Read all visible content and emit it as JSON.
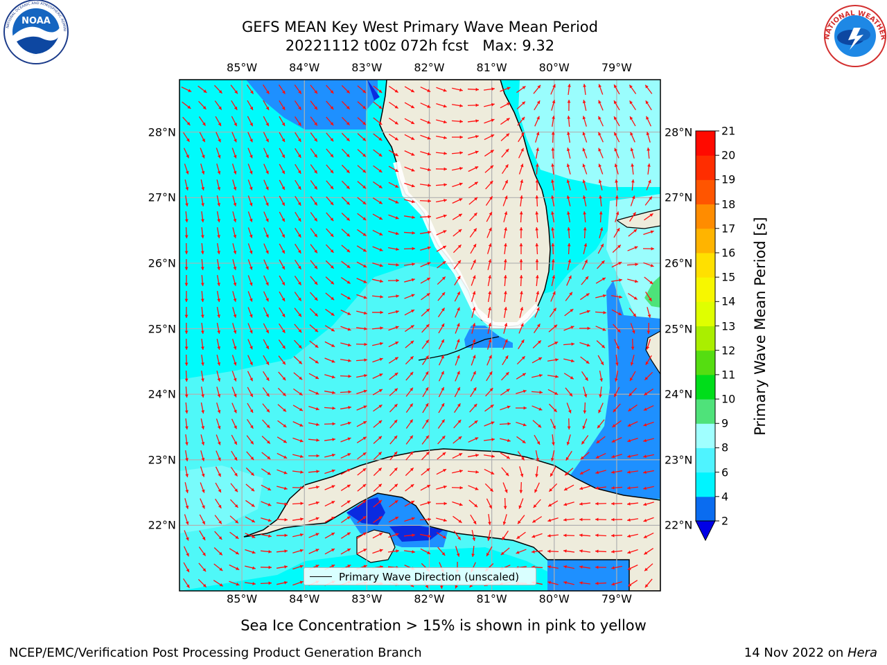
{
  "title": {
    "line1": "GEFS MEAN Key West Primary Wave Mean Period",
    "line2": "20221112 t00z 072h fcst   Max: 9.32"
  },
  "logos": {
    "left": {
      "name": "noaa-logo",
      "text": "NOAA",
      "ring_text": "NATIONAL OCEANIC AND ATMOSPHERIC ADMINISTRATION · U.S. DEPARTMENT OF COMMERCE"
    },
    "right": {
      "name": "nws-logo",
      "ring_text": "NATIONAL WEATHER SERVICE"
    }
  },
  "map": {
    "lon_ticks": [
      "85°W",
      "84°W",
      "83°W",
      "82°W",
      "81°W",
      "80°W",
      "79°W"
    ],
    "lat_ticks": [
      "28°N",
      "27°N",
      "26°N",
      "25°N",
      "24°N",
      "23°N",
      "22°N"
    ],
    "lon_range": [
      -86,
      -78.3
    ],
    "lat_range": [
      21,
      28.8
    ],
    "colors": {
      "water_base": "#00fbfb",
      "water_light": "#4ff8f8",
      "water_pale": "#9afdfd",
      "low_period": "#1e90ff",
      "very_low": "#0a2be0",
      "green": "#4de37a",
      "land": "#eeecdc",
      "arrows": "#ff1010",
      "grid": "#b0b0b0"
    },
    "legend_label": "Primary Wave Direction (unscaled)"
  },
  "colorbar": {
    "title": "Primary Wave Mean Period [s]",
    "ticks": [
      "2",
      "4",
      "6",
      "8",
      "9",
      "10",
      "11",
      "12",
      "13",
      "14",
      "15",
      "16",
      "17",
      "18",
      "19",
      "20",
      "21"
    ],
    "levels": [
      2,
      4,
      6,
      8,
      9,
      10,
      11,
      12,
      13,
      14,
      15,
      16,
      17,
      18,
      19,
      20,
      21
    ],
    "band_colors": [
      "#0a6cf0",
      "#00f4ff",
      "#4ff3ff",
      "#a0ffff",
      "#4fe27a",
      "#00dd1a",
      "#55dd11",
      "#aaee00",
      "#dfff00",
      "#f7f700",
      "#ffe000",
      "#ffb400",
      "#ff8c00",
      "#ff5500",
      "#ff2d00",
      "#ff0a00"
    ],
    "extend_color": "#0000e6"
  },
  "ice_note": "Sea Ice Concentration > 15% is shown in pink to yellow",
  "footer": {
    "left": "NCEP/EMC/Verification Post Processing Product Generation Branch",
    "right_prefix": "14 Nov 2022 on ",
    "right_host": "Hera"
  }
}
